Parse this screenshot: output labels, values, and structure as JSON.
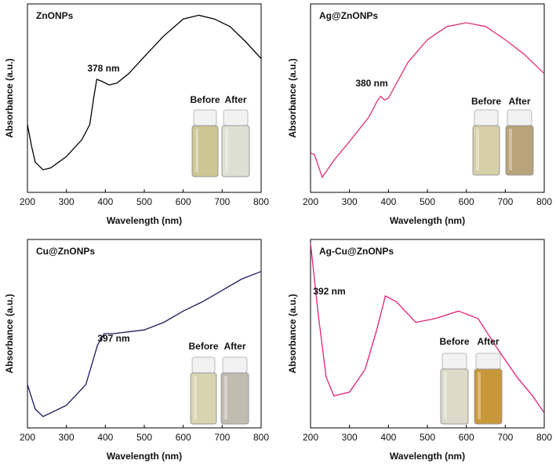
{
  "chart_data": [
    {
      "type": "line",
      "title": "ZnONPs",
      "xlabel": "Wavelength (nm)",
      "ylabel": "Absorbance (a.u.)",
      "annotation": "378 nm",
      "sample_labels": [
        "Before",
        "After"
      ],
      "xlim": [
        200,
        800
      ],
      "xticks": [
        200,
        300,
        400,
        500,
        600,
        700,
        800
      ],
      "ylim": [
        0,
        1
      ],
      "x": [
        200,
        210,
        220,
        240,
        260,
        300,
        340,
        360,
        370,
        378,
        390,
        410,
        430,
        460,
        500,
        550,
        600,
        640,
        680,
        720,
        760,
        800
      ],
      "series": [
        {
          "name": "ZnONPs",
          "color": "#000000",
          "values": [
            0.36,
            0.25,
            0.16,
            0.12,
            0.13,
            0.19,
            0.28,
            0.36,
            0.5,
            0.6,
            0.59,
            0.57,
            0.58,
            0.63,
            0.72,
            0.83,
            0.92,
            0.94,
            0.92,
            0.88,
            0.8,
            0.71
          ]
        }
      ]
    },
    {
      "type": "line",
      "title": "Ag@ZnONPs",
      "xlabel": "Wavelength (nm)",
      "ylabel": "Absorbance (a.u.)",
      "annotation": "380 nm",
      "sample_labels": [
        "Before",
        "After"
      ],
      "xlim": [
        200,
        800
      ],
      "xticks": [
        200,
        300,
        400,
        500,
        600,
        700,
        800
      ],
      "ylim": [
        0,
        1
      ],
      "x": [
        200,
        210,
        230,
        260,
        300,
        350,
        370,
        380,
        390,
        400,
        450,
        500,
        550,
        600,
        650,
        700,
        750,
        800
      ],
      "series": [
        {
          "name": "Ag@ZnONPs",
          "color": "#e0307a",
          "values": [
            0.21,
            0.2,
            0.08,
            0.17,
            0.27,
            0.4,
            0.48,
            0.51,
            0.49,
            0.5,
            0.69,
            0.81,
            0.88,
            0.9,
            0.88,
            0.81,
            0.73,
            0.63
          ]
        }
      ]
    },
    {
      "type": "line",
      "title": "Cu@ZnONPs",
      "xlabel": "Wavelength (nm)",
      "ylabel": "Absorbance (a.u.)",
      "annotation": "397 nm",
      "sample_labels": [
        "Before",
        "After"
      ],
      "xlim": [
        200,
        800
      ],
      "xticks": [
        200,
        300,
        400,
        500,
        600,
        700,
        800
      ],
      "ylim": [
        0,
        1
      ],
      "x": [
        200,
        220,
        240,
        300,
        350,
        380,
        397,
        420,
        500,
        550,
        600,
        650,
        700,
        750,
        800
      ],
      "series": [
        {
          "name": "Cu@ZnONPs",
          "color": "#1a1a5e",
          "values": [
            0.23,
            0.1,
            0.06,
            0.12,
            0.23,
            0.44,
            0.5,
            0.5,
            0.52,
            0.56,
            0.62,
            0.67,
            0.73,
            0.79,
            0.83
          ]
        }
      ]
    },
    {
      "type": "line",
      "title": "Ag-Cu@ZnONPs",
      "xlabel": "Wavelength (nm)",
      "ylabel": "Absorbance (a.u.)",
      "annotation": "392 nm",
      "sample_labels": [
        "Before",
        "After"
      ],
      "xlim": [
        200,
        800
      ],
      "xticks": [
        200,
        300,
        400,
        500,
        600,
        700,
        800
      ],
      "ylim": [
        0,
        1
      ],
      "x": [
        200,
        220,
        240,
        260,
        300,
        340,
        370,
        392,
        420,
        470,
        520,
        580,
        630,
        680,
        730,
        770,
        800
      ],
      "series": [
        {
          "name": "Ag-Cu@ZnONPs",
          "color": "#e0207a",
          "values": [
            0.98,
            0.6,
            0.27,
            0.17,
            0.19,
            0.31,
            0.52,
            0.7,
            0.67,
            0.56,
            0.58,
            0.62,
            0.58,
            0.42,
            0.27,
            0.17,
            0.08
          ]
        }
      ]
    }
  ]
}
